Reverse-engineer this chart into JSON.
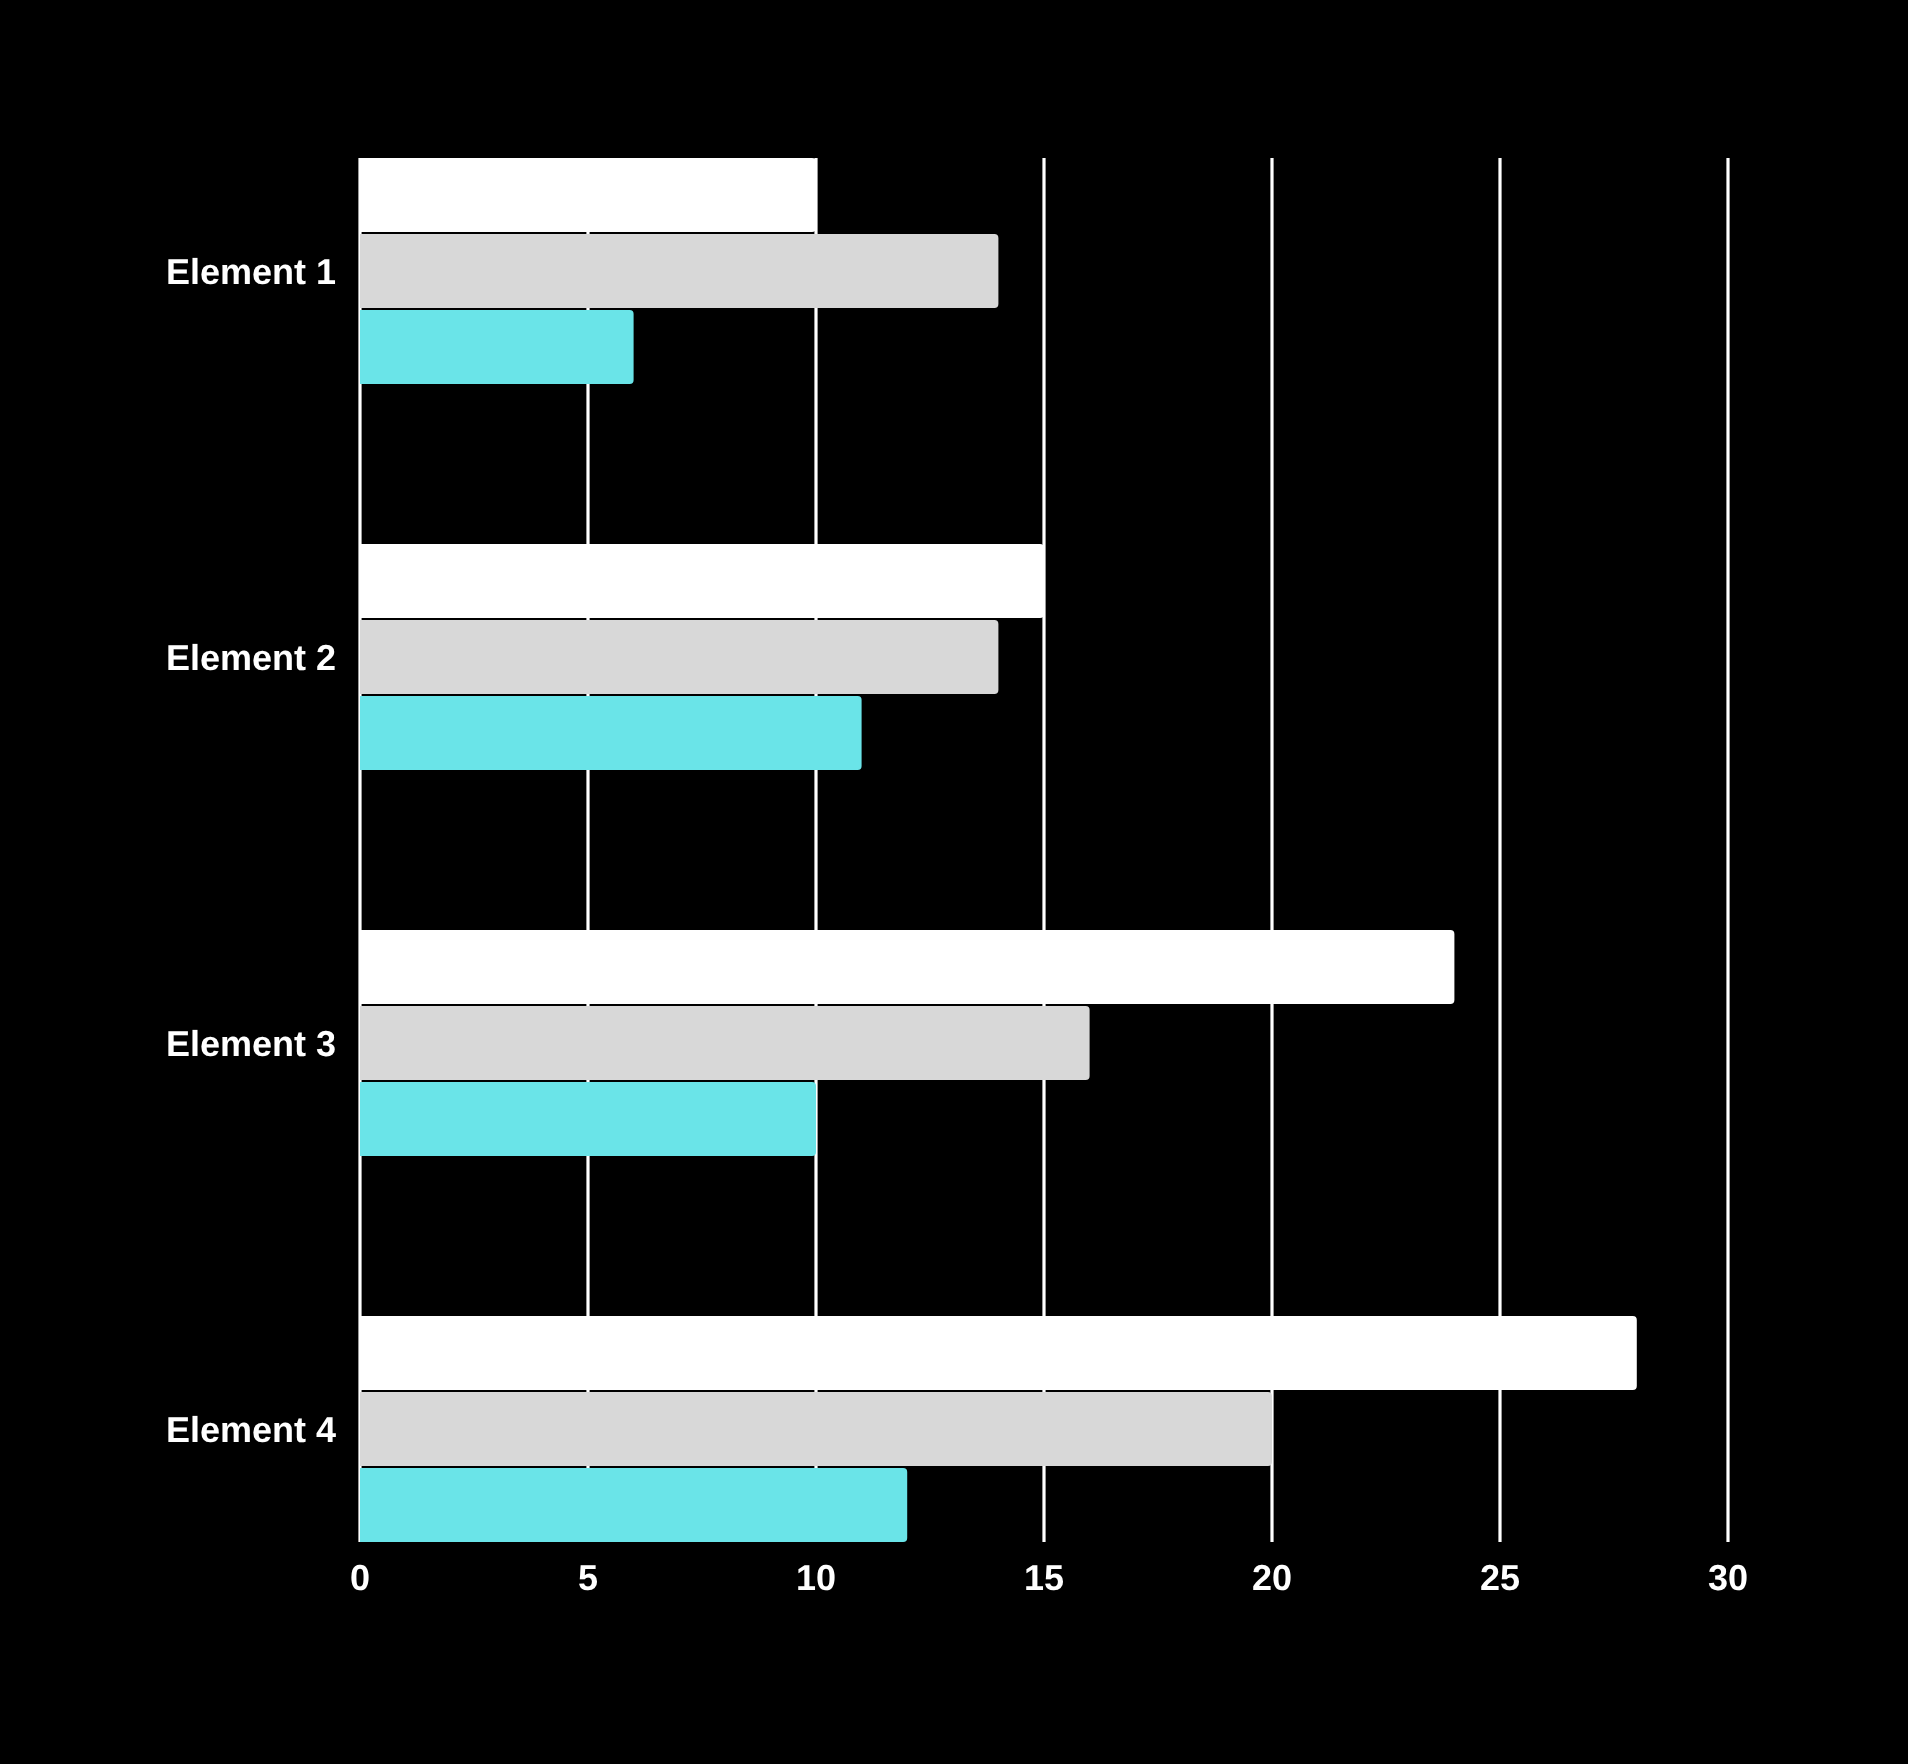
{
  "chart_data": {
    "type": "bar",
    "orientation": "horizontal",
    "categories": [
      "Element 1",
      "Element 2",
      "Element 3",
      "Element 4"
    ],
    "series": [
      {
        "color": "#ffffff",
        "values": [
          10,
          15,
          24,
          28
        ]
      },
      {
        "color": "#d8d8d8",
        "values": [
          14,
          14,
          16,
          20
        ]
      },
      {
        "color": "#6ae4e8",
        "values": [
          6,
          11,
          10,
          12
        ]
      }
    ],
    "xlim": [
      0,
      30
    ],
    "xticks": [
      0,
      5,
      10,
      15,
      20,
      25,
      30
    ],
    "grid": "x"
  }
}
